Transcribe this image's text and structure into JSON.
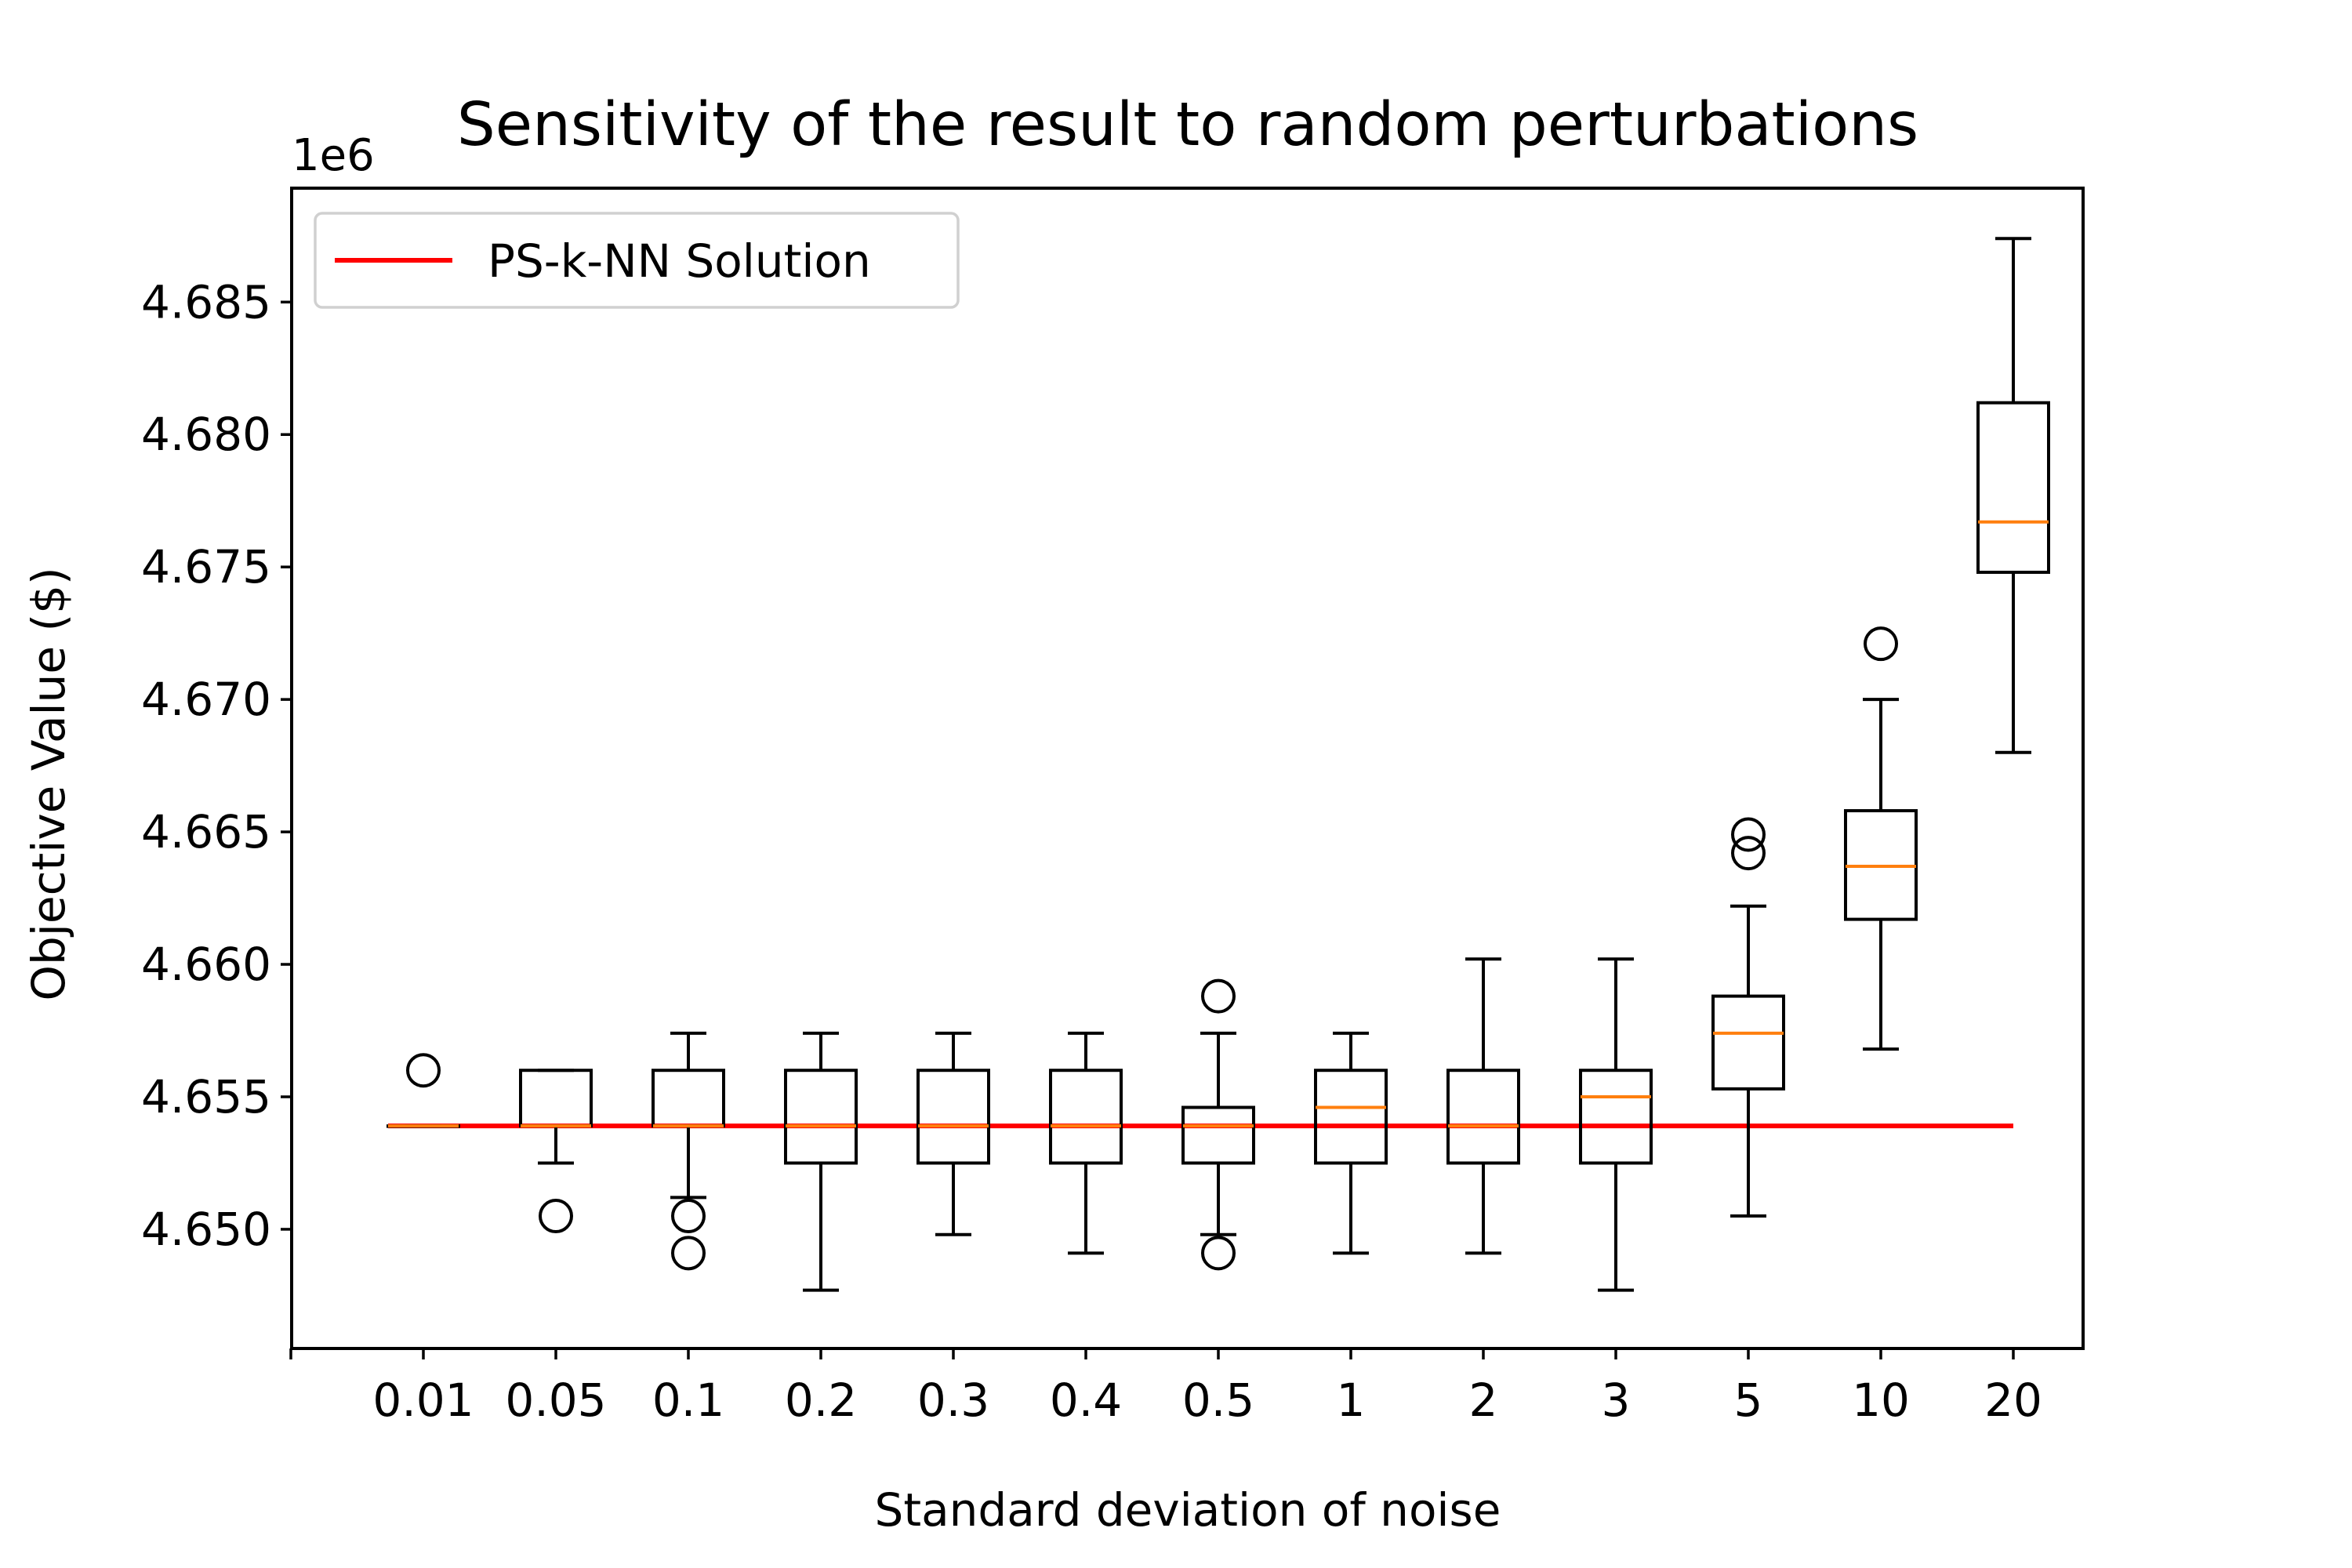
{
  "chart_data": {
    "type": "box",
    "title": "Sensitivity of the result to random perturbations",
    "xlabel": "Standard deviation of noise",
    "ylabel": "Objective Value ($)",
    "y_offset_label": "1e6",
    "ylim": [
      4.6455,
      4.6893
    ],
    "yticks": [
      4.65,
      4.655,
      4.66,
      4.665,
      4.67,
      4.675,
      4.68,
      4.685
    ],
    "ytick_labels": [
      "4.650",
      "4.655",
      "4.660",
      "4.665",
      "4.670",
      "4.675",
      "4.680",
      "4.685"
    ],
    "categories": [
      "0.01",
      "0.05",
      "0.1",
      "0.2",
      "0.3",
      "0.4",
      "0.5",
      "1",
      "2",
      "3",
      "5",
      "10",
      "20"
    ],
    "boxes": [
      {
        "whisker_low": 4.6539,
        "q1": 4.6539,
        "median": 4.6539,
        "q3": 4.6539,
        "whisker_high": 4.6539,
        "outliers": [
          4.656
        ]
      },
      {
        "whisker_low": 4.6525,
        "q1": 4.6539,
        "median": 4.6539,
        "q3": 4.656,
        "whisker_high": 4.656,
        "outliers": [
          4.6505
        ]
      },
      {
        "whisker_low": 4.6512,
        "q1": 4.6539,
        "median": 4.6539,
        "q3": 4.656,
        "whisker_high": 4.6574,
        "outliers": [
          4.6505,
          4.6491
        ]
      },
      {
        "whisker_low": 4.6477,
        "q1": 4.6525,
        "median": 4.6539,
        "q3": 4.656,
        "whisker_high": 4.6574,
        "outliers": []
      },
      {
        "whisker_low": 4.6498,
        "q1": 4.6525,
        "median": 4.6539,
        "q3": 4.656,
        "whisker_high": 4.6574,
        "outliers": []
      },
      {
        "whisker_low": 4.6491,
        "q1": 4.6525,
        "median": 4.6539,
        "q3": 4.656,
        "whisker_high": 4.6574,
        "outliers": []
      },
      {
        "whisker_low": 4.6498,
        "q1": 4.6525,
        "median": 4.6539,
        "q3": 4.6546,
        "whisker_high": 4.6574,
        "outliers": [
          4.6588,
          4.6491
        ]
      },
      {
        "whisker_low": 4.6491,
        "q1": 4.6525,
        "median": 4.6546,
        "q3": 4.656,
        "whisker_high": 4.6574,
        "outliers": []
      },
      {
        "whisker_low": 4.6491,
        "q1": 4.6525,
        "median": 4.6539,
        "q3": 4.656,
        "whisker_high": 4.6602,
        "outliers": []
      },
      {
        "whisker_low": 4.6477,
        "q1": 4.6525,
        "median": 4.655,
        "q3": 4.656,
        "whisker_high": 4.6602,
        "outliers": []
      },
      {
        "whisker_low": 4.6505,
        "q1": 4.6553,
        "median": 4.6574,
        "q3": 4.6588,
        "whisker_high": 4.6622,
        "outliers": [
          4.6649,
          4.6642
        ]
      },
      {
        "whisker_low": 4.6568,
        "q1": 4.6617,
        "median": 4.6637,
        "q3": 4.6658,
        "whisker_high": 4.67,
        "outliers": [
          4.6721
        ]
      },
      {
        "whisker_low": 4.668,
        "q1": 4.6748,
        "median": 4.6767,
        "q3": 4.6812,
        "whisker_high": 4.6874,
        "outliers": []
      }
    ],
    "reference_line": {
      "name": "PS-k-NN Solution",
      "value": 4.6539,
      "color": "#ff0000"
    },
    "box_color": "#000000",
    "median_color": "#ff7f0e",
    "legend_position": "upper-left",
    "grid": false
  }
}
